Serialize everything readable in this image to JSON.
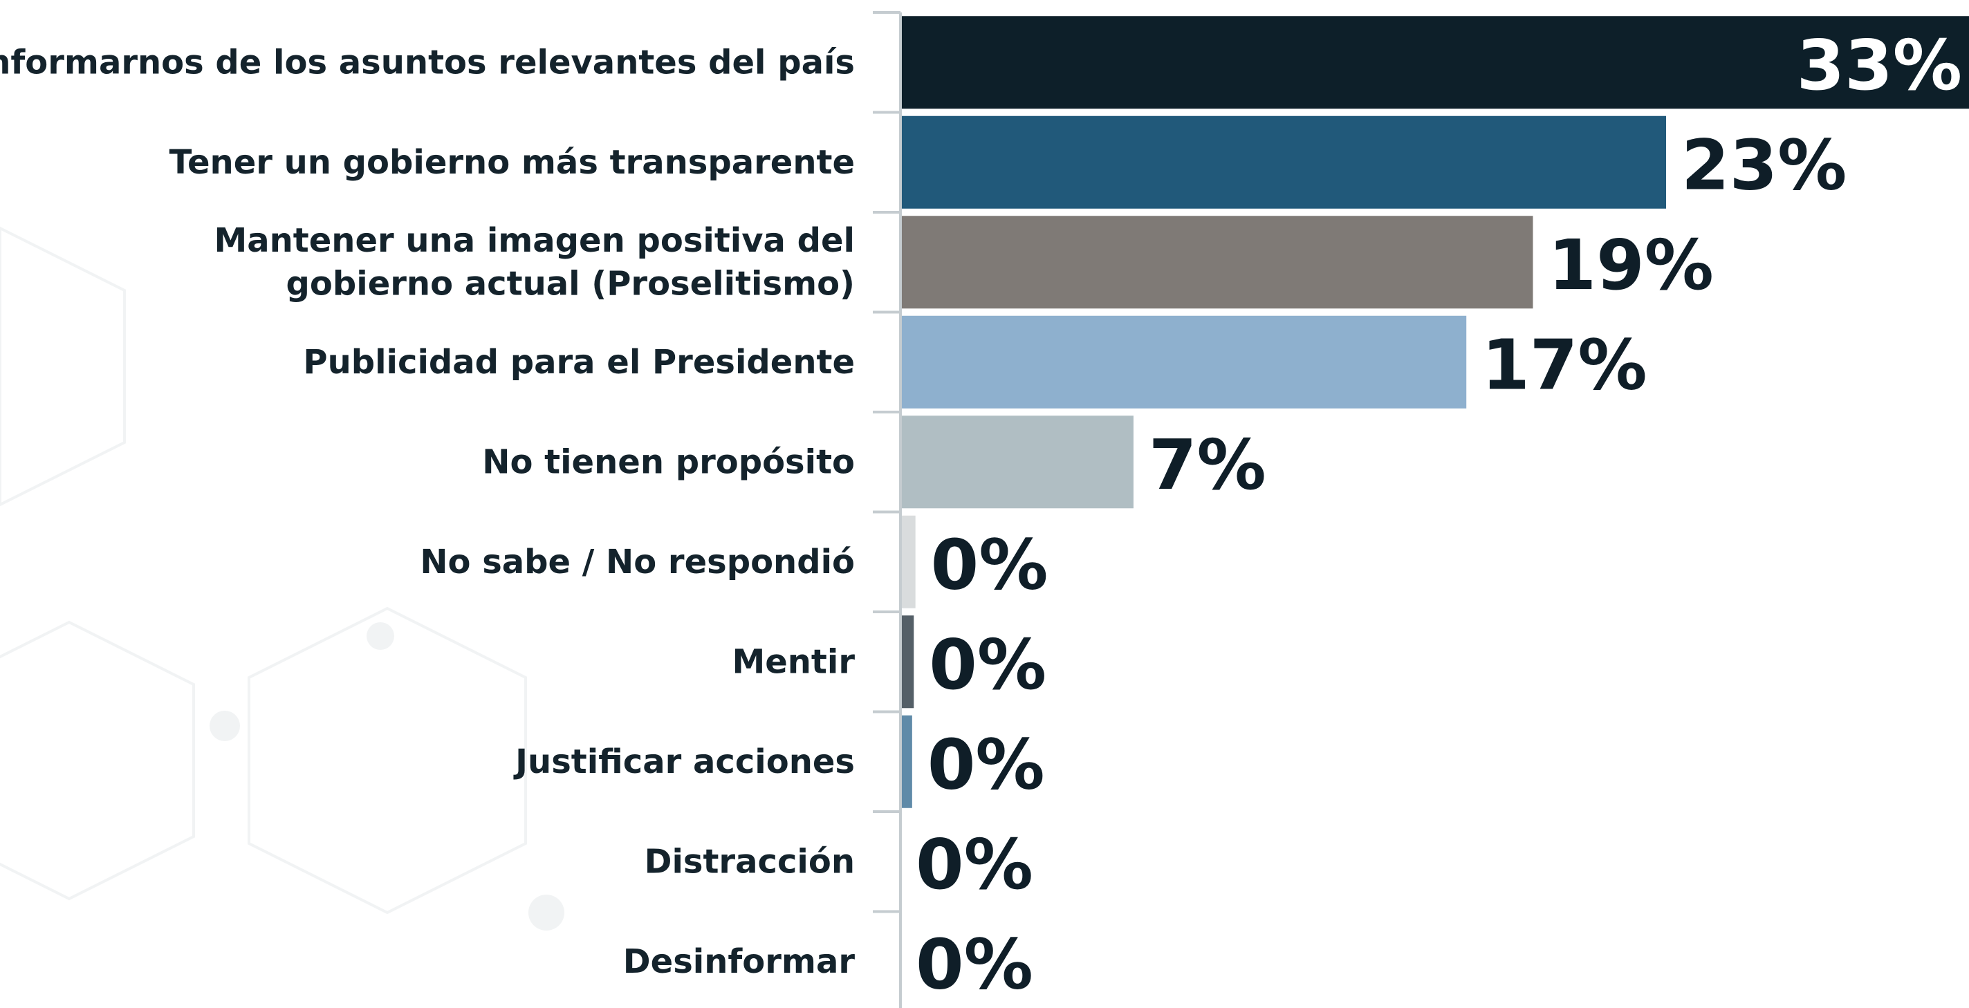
{
  "chart_data": {
    "type": "barh",
    "categories": [
      "Informarnos de los asuntos relevantes del país",
      "Tener un gobierno más transparente",
      "Mantener una imagen positiva del\ngobierno actual (Proselitismo)",
      "Publicidad para el Presidente",
      "No tienen propósito",
      "No sabe / No respondió",
      "Mentir",
      "Justificar acciones",
      "Distracción",
      "Desinformar"
    ],
    "values": [
      33,
      23,
      19,
      17,
      7,
      0.45,
      0.4,
      0.35,
      0,
      0
    ],
    "value_labels": [
      "33%",
      "23%",
      "19%",
      "17%",
      "7%",
      "0%",
      "0%",
      "0%",
      "0%",
      "0%"
    ],
    "colors": [
      "#0d1f29",
      "#21597a",
      "#7f7a76",
      "#8eb0ce",
      "#b0bec3",
      "#d9dcdd",
      "#545f67",
      "#5f8aa8",
      "#b0bec3",
      "#d9dcdd"
    ],
    "xlim": [
      0,
      32.1
    ]
  }
}
